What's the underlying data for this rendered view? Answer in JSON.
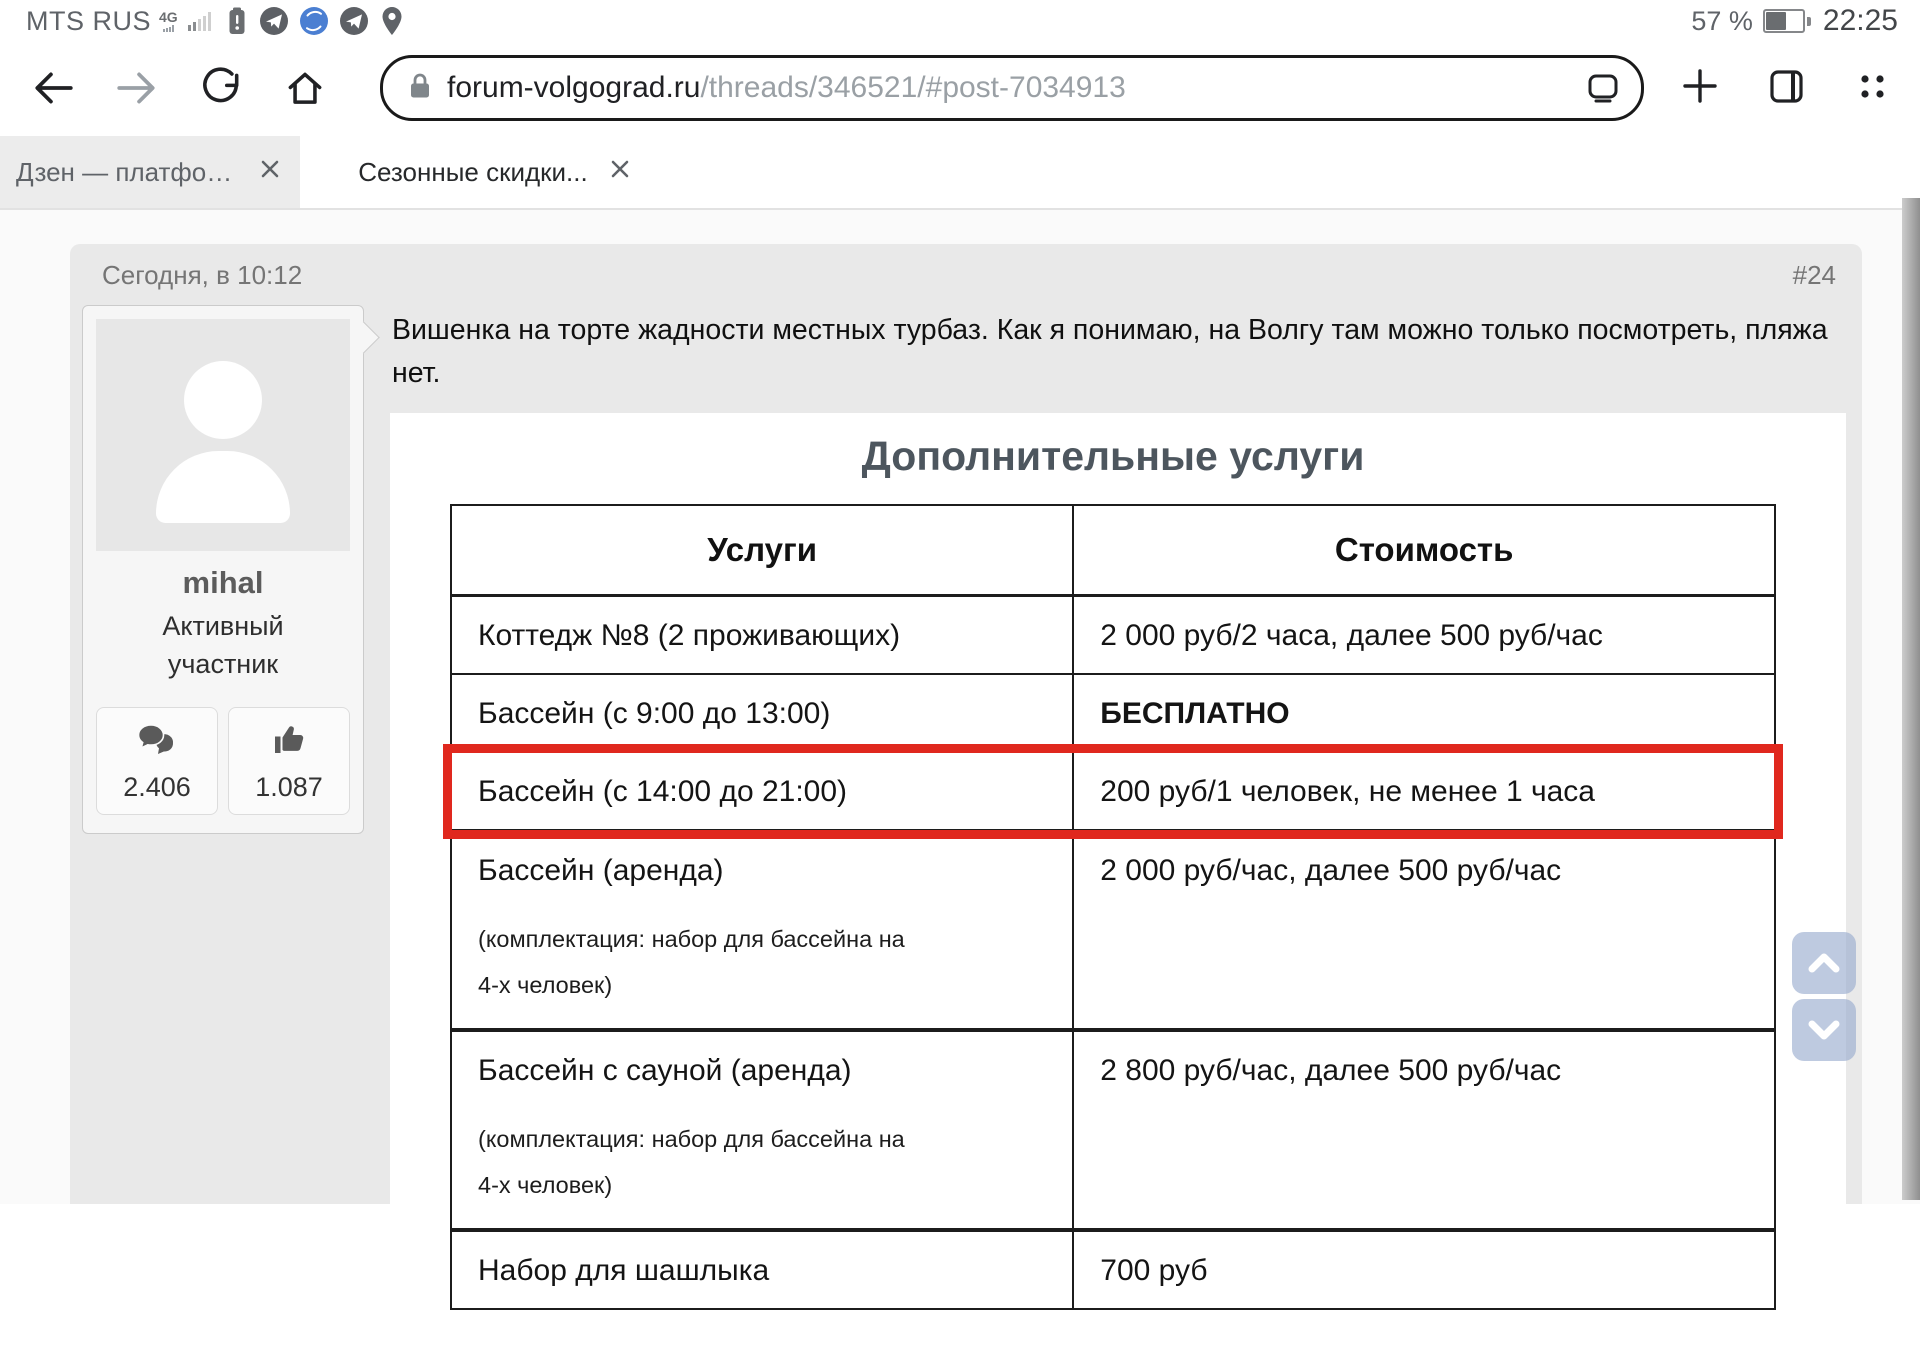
{
  "status_bar": {
    "carrier": "MTS RUS",
    "network_badge": "4G",
    "battery_percent": "57 %",
    "time": "22:25",
    "icons": [
      "signal-bars-icon",
      "battery-alert-icon",
      "telegram-icon",
      "browser-globe-icon",
      "telegram-arrow-icon",
      "location-pin-icon"
    ]
  },
  "browser": {
    "url_domain": "forum-volgograd.ru",
    "url_path": "/threads/346521/#post-7034913",
    "toolbar_icons": [
      "back-icon",
      "forward-icon",
      "reload-icon",
      "home-icon",
      "lock-icon",
      "desktop-site-icon",
      "new-tab-icon",
      "tab-switcher-icon",
      "menu-dots-icon"
    ]
  },
  "tabs": [
    {
      "label": "Дзен — платформа...",
      "active": false
    },
    {
      "label": "Сезонные скидки...",
      "active": true
    }
  ],
  "post": {
    "date": "Сегодня, в 10:12",
    "number": "#24",
    "author": {
      "name": "mihal",
      "role": "Активный участник",
      "messages_count": "2.406",
      "likes_count": "1.087"
    },
    "body_text": "Вишенка на торте жадности местных турбаз. Как я понимаю, на Волгу там можно только посмотреть, пляжа нет.",
    "table": {
      "title": "Дополнительные услуги",
      "headers": [
        "Услуги",
        "Стоимость"
      ],
      "rows": [
        {
          "service": "Коттедж №8 (2 проживающих)",
          "note": "",
          "price": "2 000 руб/2 часа, далее 500 руб/час"
        },
        {
          "service": "Бассейн (с 9:00 до 13:00)",
          "note": "",
          "price": "БЕСПЛАТНО",
          "price_bold": true
        },
        {
          "service": "Бассейн (с 14:00 до 21:00)",
          "note": "",
          "price": "200 руб/1 человек, не менее 1 часа",
          "highlighted": true
        },
        {
          "service": "Бассейн (аренда)",
          "note": "(комплектация: набор для бассейна на 4-х человек)",
          "price": "2 000 руб/час, далее 500 руб/час",
          "tall": true
        },
        {
          "service": "Бассейн с сауной (аренда)",
          "note": "(комплектация: набор для бассейна на 4-х человек)",
          "price": "2 800 руб/час, далее 500 руб/час",
          "tall": true,
          "thick_top": true
        },
        {
          "service": "Набор для шашлыка",
          "note": "",
          "price": "700 руб",
          "thick_top": true
        }
      ]
    }
  },
  "colors": {
    "highlight_red": "#e0281e",
    "table_title_gray": "#4d565e",
    "scroll_button_blue": "#96aacd",
    "post_background": "#e9e9e9"
  }
}
